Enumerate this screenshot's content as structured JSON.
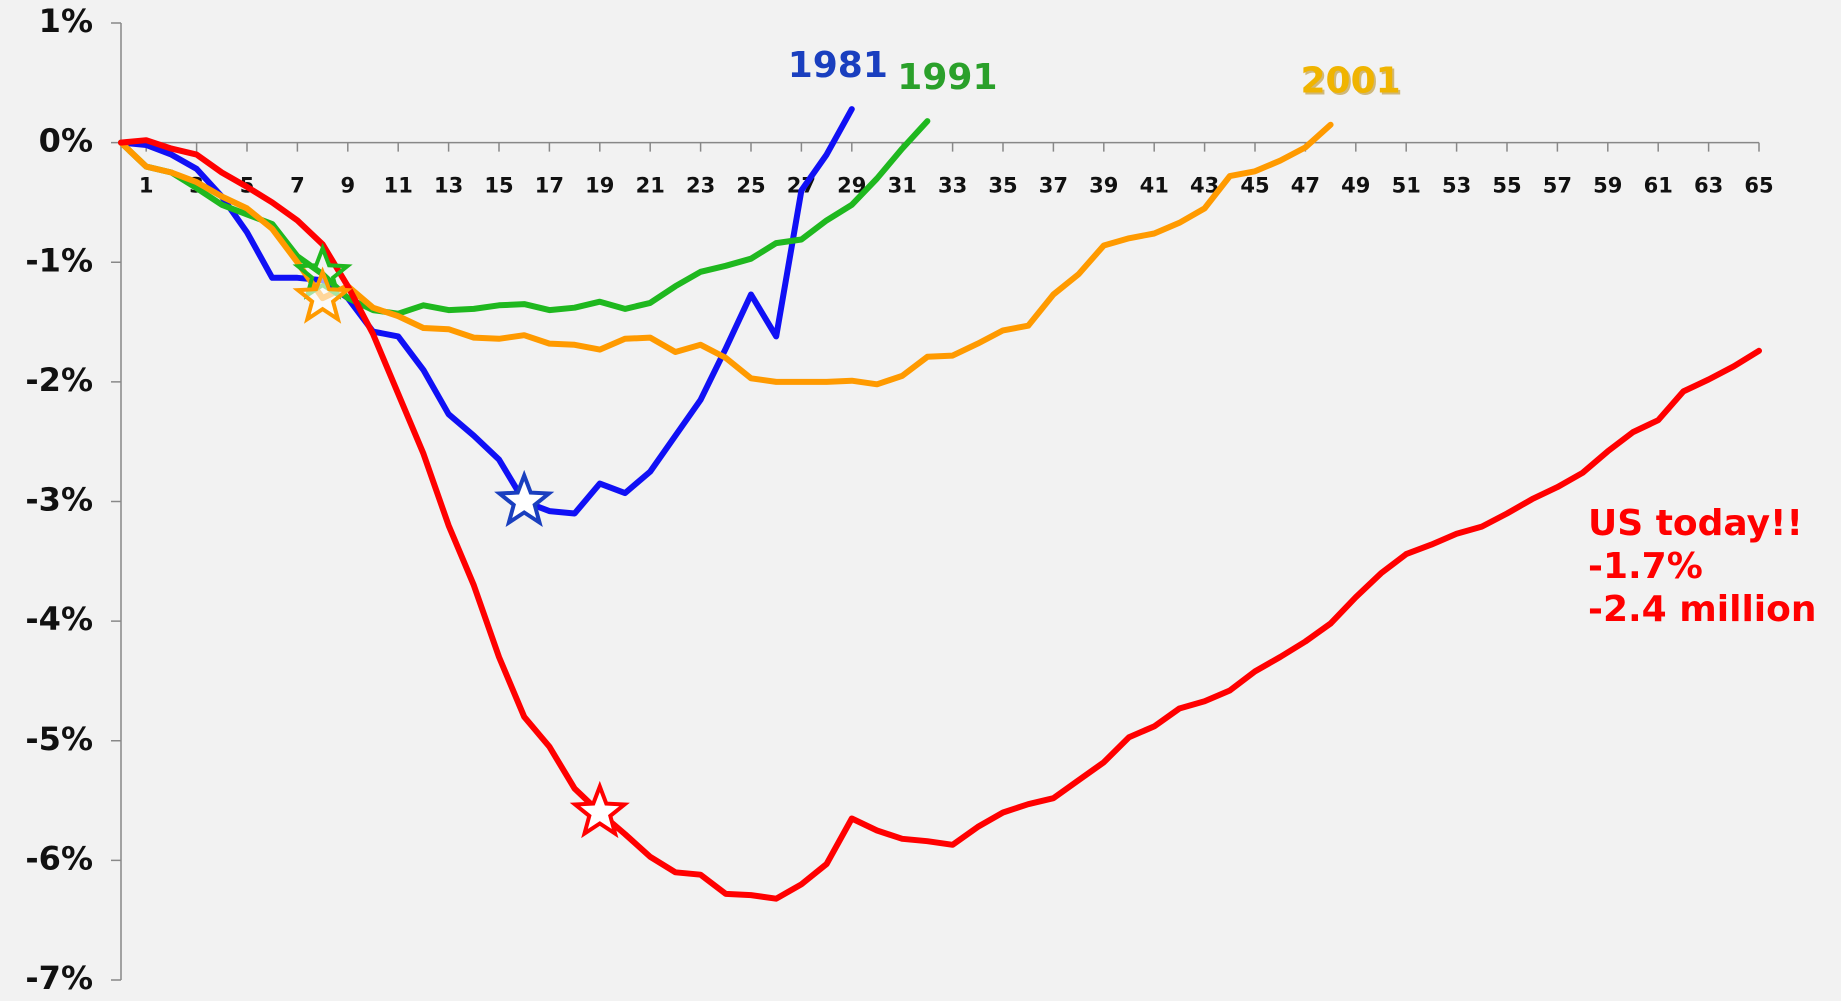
{
  "chart_data": {
    "type": "line",
    "x": [
      0,
      1,
      2,
      3,
      4,
      5,
      6,
      7,
      8,
      9,
      10,
      11,
      12,
      13,
      14,
      15,
      16,
      17,
      18,
      19,
      20,
      21,
      22,
      23,
      24,
      25,
      26,
      27,
      28,
      29,
      30,
      31,
      32,
      33,
      34,
      35,
      36,
      37,
      38,
      39,
      40,
      41,
      42,
      43,
      44,
      45,
      46,
      47,
      48,
      49,
      50,
      51,
      52,
      53,
      54,
      55,
      56,
      57,
      58,
      59,
      60,
      61,
      62,
      63,
      64,
      65
    ],
    "xlim": [
      0,
      65
    ],
    "xticks": [
      1,
      3,
      5,
      7,
      9,
      11,
      13,
      15,
      17,
      19,
      21,
      23,
      25,
      27,
      29,
      31,
      33,
      35,
      37,
      39,
      41,
      43,
      45,
      47,
      49,
      51,
      53,
      55,
      57,
      59,
      61,
      63,
      65
    ],
    "ylim": [
      -7,
      1
    ],
    "yticks": [
      {
        "value": 1,
        "label": "1%"
      },
      {
        "value": 0,
        "label": "0%"
      },
      {
        "value": -1,
        "label": "-1%"
      },
      {
        "value": -2,
        "label": "-2%"
      },
      {
        "value": -3,
        "label": "-3%"
      },
      {
        "value": -4,
        "label": "-4%"
      },
      {
        "value": -5,
        "label": "-5%"
      },
      {
        "value": -6,
        "label": "-6%"
      },
      {
        "value": -7,
        "label": "-7%"
      }
    ],
    "series": [
      {
        "name": "1981",
        "color": "#1010f5",
        "label_color": "#1a3fbf",
        "star": 16,
        "values": [
          0,
          -0.02,
          -0.1,
          -0.22,
          -0.45,
          -0.75,
          -1.13,
          -1.13,
          -1.15,
          -1.3,
          -1.58,
          -1.62,
          -1.9,
          -2.27,
          -2.45,
          -2.65,
          -3.0,
          -3.08,
          -3.1,
          -2.85,
          -2.93,
          -2.75,
          -2.45,
          -2.15,
          -1.72,
          -1.27,
          -1.62,
          -0.4,
          -0.1,
          0.28,
          null,
          null,
          null,
          null,
          null,
          null,
          null,
          null,
          null,
          null,
          null,
          null,
          null,
          null,
          null,
          null,
          null,
          null,
          null,
          null,
          null,
          null,
          null,
          null,
          null,
          null,
          null,
          null,
          null,
          null,
          null,
          null,
          null,
          null,
          null,
          null
        ]
      },
      {
        "name": "1991",
        "color": "#1fb81f",
        "label_color": "#2aa02a",
        "star": 8,
        "values": [
          0,
          -0.2,
          -0.25,
          -0.38,
          -0.52,
          -0.6,
          -0.68,
          -0.95,
          -1.1,
          -1.3,
          -1.4,
          -1.43,
          -1.36,
          -1.4,
          -1.39,
          -1.36,
          -1.35,
          -1.4,
          -1.38,
          -1.33,
          -1.39,
          -1.34,
          -1.2,
          -1.08,
          -1.03,
          -0.97,
          -0.84,
          -0.81,
          -0.65,
          -0.52,
          -0.3,
          -0.05,
          0.18,
          null,
          null,
          null,
          null,
          null,
          null,
          null,
          null,
          null,
          null,
          null,
          null,
          null,
          null,
          null,
          null,
          null,
          null,
          null,
          null,
          null,
          null,
          null,
          null,
          null,
          null,
          null,
          null,
          null,
          null,
          null,
          null,
          null
        ]
      },
      {
        "name": "2001",
        "color": "#ff9a00",
        "label_color": "#f0b400",
        "star": 8,
        "values": [
          0,
          -0.2,
          -0.25,
          -0.33,
          -0.45,
          -0.55,
          -0.72,
          -1.0,
          -1.3,
          -1.2,
          -1.38,
          -1.45,
          -1.55,
          -1.56,
          -1.63,
          -1.64,
          -1.61,
          -1.68,
          -1.69,
          -1.73,
          -1.64,
          -1.63,
          -1.75,
          -1.69,
          -1.8,
          -1.97,
          -2.0,
          -2.0,
          -2.0,
          -1.99,
          -2.02,
          -1.95,
          -1.79,
          -1.78,
          -1.68,
          -1.57,
          -1.53,
          -1.27,
          -1.1,
          -0.86,
          -0.8,
          -0.76,
          -0.67,
          -0.55,
          -0.28,
          -0.24,
          -0.15,
          -0.04,
          0.15,
          null,
          null,
          null,
          null,
          null,
          null,
          null,
          null,
          null,
          null,
          null,
          null,
          null,
          null,
          null,
          null,
          null
        ]
      },
      {
        "color": "#ff0000",
        "star": 19,
        "values": [
          0,
          0.02,
          -0.05,
          -0.1,
          -0.25,
          -0.37,
          -0.5,
          -0.65,
          -0.85,
          -1.2,
          -1.6,
          -2.1,
          -2.6,
          -3.2,
          -3.7,
          -4.3,
          -4.8,
          -5.05,
          -5.4,
          -5.6,
          -5.78,
          -5.97,
          -6.1,
          -6.12,
          -6.28,
          -6.29,
          -6.32,
          -6.2,
          -6.03,
          -5.65,
          -5.75,
          -5.82,
          -5.84,
          -5.87,
          -5.72,
          -5.6,
          -5.53,
          -5.48,
          -5.33,
          -5.18,
          -4.97,
          -4.88,
          -4.73,
          -4.67,
          -4.58,
          -4.42,
          -4.3,
          -4.17,
          -4.02,
          -3.8,
          -3.6,
          -3.44,
          -3.36,
          -3.27,
          -3.21,
          -3.1,
          -2.98,
          -2.88,
          -2.76,
          -2.58,
          -2.42,
          -2.32,
          -2.08,
          -1.98,
          -1.87,
          -1.74
        ]
      }
    ],
    "annotations": [
      "US today!!",
      "-1.7%",
      "-2.4 million"
    ]
  }
}
